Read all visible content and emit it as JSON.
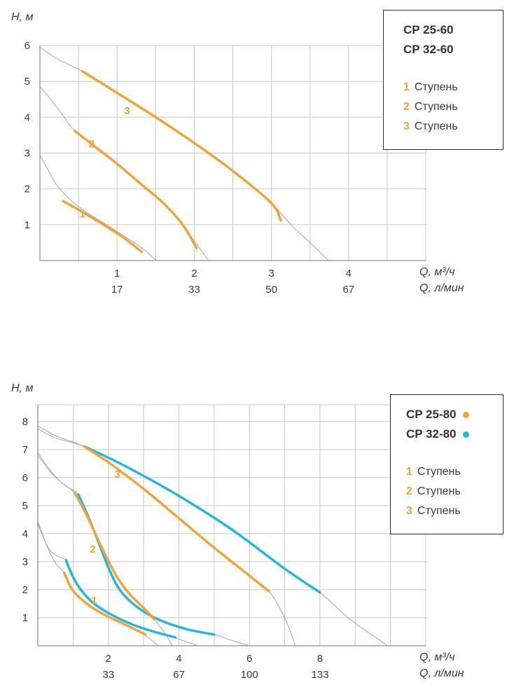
{
  "colors": {
    "orange": "#F0A43C",
    "cyan": "#2AB5D8",
    "gray_curve": "#A6A6A6",
    "grid": "#C9C9C9",
    "axis": "#8F8F8F",
    "text": "#3A3A3A",
    "legend_border": "#2E2E2E"
  },
  "chart_data": [
    {
      "type": "line",
      "ylabel": "H, м",
      "xlabel_primary": "Q, м³/ч",
      "xlabel_secondary": "Q, л/мин",
      "xlim": [
        0,
        5
      ],
      "ylim": [
        0,
        6
      ],
      "x_grid_step": 0.5,
      "y_ticks": [
        1,
        2,
        3,
        4,
        5,
        6
      ],
      "x_ticks": [
        {
          "q": 1,
          "m3h": "1",
          "lmin": "17"
        },
        {
          "q": 2,
          "m3h": "2",
          "lmin": "33"
        },
        {
          "q": 3,
          "m3h": "3",
          "lmin": "50"
        },
        {
          "q": 4,
          "m3h": "4",
          "lmin": "67"
        }
      ],
      "legend": {
        "models": [
          {
            "label": "CP 25-60",
            "dot": null
          },
          {
            "label": "CP 32-60",
            "dot": null
          }
        ],
        "stages": [
          {
            "num": "1",
            "label": "Ступень"
          },
          {
            "num": "2",
            "label": "Ступень"
          },
          {
            "num": "3",
            "label": "Ступень"
          }
        ]
      },
      "series": [
        {
          "name": "envelope-stage1",
          "color": "gray_curve",
          "width": 1,
          "points": [
            [
              0,
              2.95
            ],
            [
              0.1,
              2.55
            ],
            [
              0.22,
              2.1
            ],
            [
              0.38,
              1.72
            ],
            [
              0.6,
              1.35
            ],
            [
              0.9,
              0.95
            ],
            [
              1.15,
              0.6
            ],
            [
              1.35,
              0.3
            ],
            [
              1.5,
              0.02
            ]
          ]
        },
        {
          "name": "envelope-stage2",
          "color": "gray_curve",
          "width": 1,
          "points": [
            [
              0,
              4.85
            ],
            [
              0.12,
              4.55
            ],
            [
              0.28,
              4.1
            ],
            [
              0.45,
              3.62
            ],
            [
              0.7,
              3.2
            ],
            [
              1.0,
              2.7
            ],
            [
              1.3,
              2.15
            ],
            [
              1.6,
              1.6
            ],
            [
              1.85,
              1.0
            ],
            [
              2.05,
              0.4
            ],
            [
              2.18,
              0.02
            ]
          ]
        },
        {
          "name": "envelope-stage3",
          "color": "gray_curve",
          "width": 1,
          "points": [
            [
              0,
              5.95
            ],
            [
              0.25,
              5.6
            ],
            [
              0.55,
              5.28
            ],
            [
              1.0,
              4.68
            ],
            [
              1.5,
              4.0
            ],
            [
              2.0,
              3.28
            ],
            [
              2.5,
              2.5
            ],
            [
              3.0,
              1.6
            ],
            [
              3.25,
              1.0
            ],
            [
              3.5,
              0.5
            ],
            [
              3.73,
              0.02
            ]
          ]
        },
        {
          "name": "cp25-60-stage1",
          "color": "orange",
          "width": 3.5,
          "points": [
            [
              0.3,
              1.66
            ],
            [
              0.5,
              1.42
            ],
            [
              0.75,
              1.1
            ],
            [
              1.0,
              0.76
            ],
            [
              1.2,
              0.45
            ],
            [
              1.32,
              0.24
            ]
          ]
        },
        {
          "name": "cp25-60-stage2",
          "color": "orange",
          "width": 3.5,
          "points": [
            [
              0.45,
              3.62
            ],
            [
              0.7,
              3.2
            ],
            [
              1.0,
              2.7
            ],
            [
              1.3,
              2.15
            ],
            [
              1.6,
              1.6
            ],
            [
              1.85,
              1.0
            ],
            [
              2.03,
              0.35
            ]
          ]
        },
        {
          "name": "cp25-60-stage3",
          "color": "orange",
          "width": 3.5,
          "points": [
            [
              0.55,
              5.28
            ],
            [
              1.0,
              4.68
            ],
            [
              1.5,
              4.0
            ],
            [
              2.0,
              3.28
            ],
            [
              2.5,
              2.5
            ],
            [
              3.0,
              1.6
            ],
            [
              3.12,
              1.12
            ]
          ]
        }
      ],
      "annotations": [
        {
          "text": "1",
          "x": 0.55,
          "y": 1.3,
          "color": "orange"
        },
        {
          "text": "2",
          "x": 0.67,
          "y": 3.25,
          "color": "orange"
        },
        {
          "text": "3",
          "x": 1.13,
          "y": 4.18,
          "color": "orange"
        }
      ]
    },
    {
      "type": "line",
      "ylabel": "H, м",
      "xlabel_primary": "Q, м³/ч",
      "xlabel_secondary": "Q, л/мин",
      "xlim": [
        0,
        11
      ],
      "ylim": [
        0,
        8.6
      ],
      "x_grid_step": 1,
      "y_ticks": [
        1,
        2,
        3,
        4,
        5,
        6,
        7,
        8
      ],
      "x_ticks": [
        {
          "q": 2,
          "m3h": "2",
          "lmin": "33"
        },
        {
          "q": 4,
          "m3h": "4",
          "lmin": "67"
        },
        {
          "q": 6,
          "m3h": "6",
          "lmin": "100"
        },
        {
          "q": 8,
          "m3h": "8",
          "lmin": "133"
        }
      ],
      "legend": {
        "models": [
          {
            "label": "CP 25-80",
            "dot": "orange"
          },
          {
            "label": "CP 32-80",
            "dot": "cyan"
          }
        ],
        "stages": [
          {
            "num": "1",
            "label": "Ступень"
          },
          {
            "num": "2",
            "label": "Ступень"
          },
          {
            "num": "3",
            "label": "Ступень"
          }
        ]
      },
      "series": [
        {
          "name": "envelope-25-80-stage1",
          "color": "gray_curve",
          "width": 1,
          "points": [
            [
              0,
              4.45
            ],
            [
              0.25,
              3.6
            ],
            [
              0.5,
              2.95
            ],
            [
              0.75,
              2.6
            ],
            [
              0.95,
              2.05
            ],
            [
              1.2,
              1.7
            ],
            [
              1.5,
              1.4
            ],
            [
              1.9,
              1.1
            ],
            [
              2.4,
              0.8
            ],
            [
              2.9,
              0.5
            ],
            [
              3.2,
              0.22
            ],
            [
              3.4,
              0.02
            ]
          ]
        },
        {
          "name": "envelope-32-80-stage1",
          "color": "gray_curve",
          "width": 1,
          "points": [
            [
              0,
              4.35
            ],
            [
              0.3,
              3.5
            ],
            [
              0.55,
              3.2
            ],
            [
              0.8,
              3.05
            ],
            [
              1.0,
              2.45
            ],
            [
              1.25,
              1.95
            ],
            [
              1.6,
              1.5
            ],
            [
              2.1,
              1.1
            ],
            [
              2.7,
              0.75
            ],
            [
              3.3,
              0.5
            ],
            [
              3.9,
              0.28
            ],
            [
              4.3,
              0.1
            ],
            [
              4.5,
              0.02
            ]
          ]
        },
        {
          "name": "envelope-25-80-stage2",
          "color": "gray_curve",
          "width": 1,
          "points": [
            [
              0,
              6.9
            ],
            [
              0.3,
              6.35
            ],
            [
              0.65,
              5.85
            ],
            [
              1.05,
              5.45
            ],
            [
              1.35,
              4.75
            ],
            [
              1.65,
              3.95
            ],
            [
              1.95,
              3.15
            ],
            [
              2.25,
              2.45
            ],
            [
              2.6,
              1.85
            ],
            [
              3.0,
              1.35
            ],
            [
              3.3,
              0.95
            ],
            [
              3.6,
              0.45
            ],
            [
              3.8,
              0.02
            ]
          ]
        },
        {
          "name": "envelope-32-80-stage2",
          "color": "gray_curve",
          "width": 1,
          "points": [
            [
              0,
              6.8
            ],
            [
              0.4,
              6.15
            ],
            [
              0.8,
              5.7
            ],
            [
              1.15,
              5.4
            ],
            [
              1.45,
              4.55
            ],
            [
              1.75,
              3.6
            ],
            [
              2.05,
              2.65
            ],
            [
              2.35,
              1.95
            ],
            [
              2.8,
              1.4
            ],
            [
              3.4,
              0.95
            ],
            [
              4.2,
              0.6
            ],
            [
              5.0,
              0.4
            ],
            [
              5.6,
              0.15
            ],
            [
              5.95,
              0.02
            ]
          ]
        },
        {
          "name": "envelope-25-80-stage3",
          "color": "gray_curve",
          "width": 1,
          "points": [
            [
              0,
              7.85
            ],
            [
              0.5,
              7.5
            ],
            [
              1.3,
              7.12
            ],
            [
              2.0,
              6.55
            ],
            [
              3.0,
              5.6
            ],
            [
              4.0,
              4.55
            ],
            [
              5.0,
              3.5
            ],
            [
              6.0,
              2.5
            ],
            [
              6.55,
              1.95
            ],
            [
              7.0,
              1.0
            ],
            [
              7.3,
              0.02
            ]
          ]
        },
        {
          "name": "envelope-32-80-stage3",
          "color": "gray_curve",
          "width": 1,
          "points": [
            [
              0,
              7.75
            ],
            [
              0.5,
              7.42
            ],
            [
              1.35,
              7.1
            ],
            [
              2.5,
              6.4
            ],
            [
              4.0,
              5.35
            ],
            [
              5.5,
              4.15
            ],
            [
              7.0,
              2.75
            ],
            [
              8.0,
              1.9
            ],
            [
              8.8,
              1.0
            ],
            [
              9.4,
              0.45
            ],
            [
              9.9,
              0.02
            ]
          ]
        },
        {
          "name": "cp32-80-stage1",
          "color": "cyan",
          "width": 3.5,
          "points": [
            [
              0.8,
              3.05
            ],
            [
              1.0,
              2.45
            ],
            [
              1.25,
              1.95
            ],
            [
              1.6,
              1.5
            ],
            [
              2.1,
              1.1
            ],
            [
              2.7,
              0.75
            ],
            [
              3.3,
              0.5
            ],
            [
              3.9,
              0.3
            ]
          ]
        },
        {
          "name": "cp32-80-stage2",
          "color": "cyan",
          "width": 3.5,
          "points": [
            [
              1.15,
              5.4
            ],
            [
              1.45,
              4.55
            ],
            [
              1.75,
              3.6
            ],
            [
              2.05,
              2.65
            ],
            [
              2.35,
              1.95
            ],
            [
              2.8,
              1.4
            ],
            [
              3.4,
              0.95
            ],
            [
              4.2,
              0.6
            ],
            [
              5.0,
              0.4
            ]
          ]
        },
        {
          "name": "cp32-80-stage3",
          "color": "cyan",
          "width": 3.5,
          "points": [
            [
              1.35,
              7.1
            ],
            [
              2.5,
              6.4
            ],
            [
              4.0,
              5.35
            ],
            [
              5.5,
              4.15
            ],
            [
              7.0,
              2.75
            ],
            [
              8.0,
              1.9
            ]
          ]
        },
        {
          "name": "cp25-80-stage1",
          "color": "orange",
          "width": 3.5,
          "points": [
            [
              0.75,
              2.6
            ],
            [
              0.95,
              2.05
            ],
            [
              1.2,
              1.7
            ],
            [
              1.5,
              1.4
            ],
            [
              1.9,
              1.1
            ],
            [
              2.4,
              0.8
            ],
            [
              2.9,
              0.5
            ],
            [
              3.05,
              0.4
            ]
          ]
        },
        {
          "name": "cp25-80-stage2",
          "color": "orange",
          "width": 3.5,
          "points": [
            [
              1.05,
              5.45
            ],
            [
              1.35,
              4.75
            ],
            [
              1.65,
              3.95
            ],
            [
              1.95,
              3.15
            ],
            [
              2.25,
              2.45
            ],
            [
              2.6,
              1.85
            ],
            [
              3.0,
              1.35
            ],
            [
              3.3,
              0.95
            ]
          ]
        },
        {
          "name": "cp25-80-stage3",
          "color": "orange",
          "width": 3.5,
          "points": [
            [
              1.3,
              7.12
            ],
            [
              2.0,
              6.55
            ],
            [
              3.0,
              5.6
            ],
            [
              4.0,
              4.55
            ],
            [
              5.0,
              3.5
            ],
            [
              6.0,
              2.5
            ],
            [
              6.55,
              1.95
            ]
          ]
        }
      ],
      "annotations": [
        {
          "text": "1",
          "x": 1.6,
          "y": 1.62,
          "color": "orange"
        },
        {
          "text": "2",
          "x": 1.56,
          "y": 3.45,
          "color": "orange"
        },
        {
          "text": "3",
          "x": 2.25,
          "y": 6.12,
          "color": "orange"
        }
      ]
    }
  ]
}
